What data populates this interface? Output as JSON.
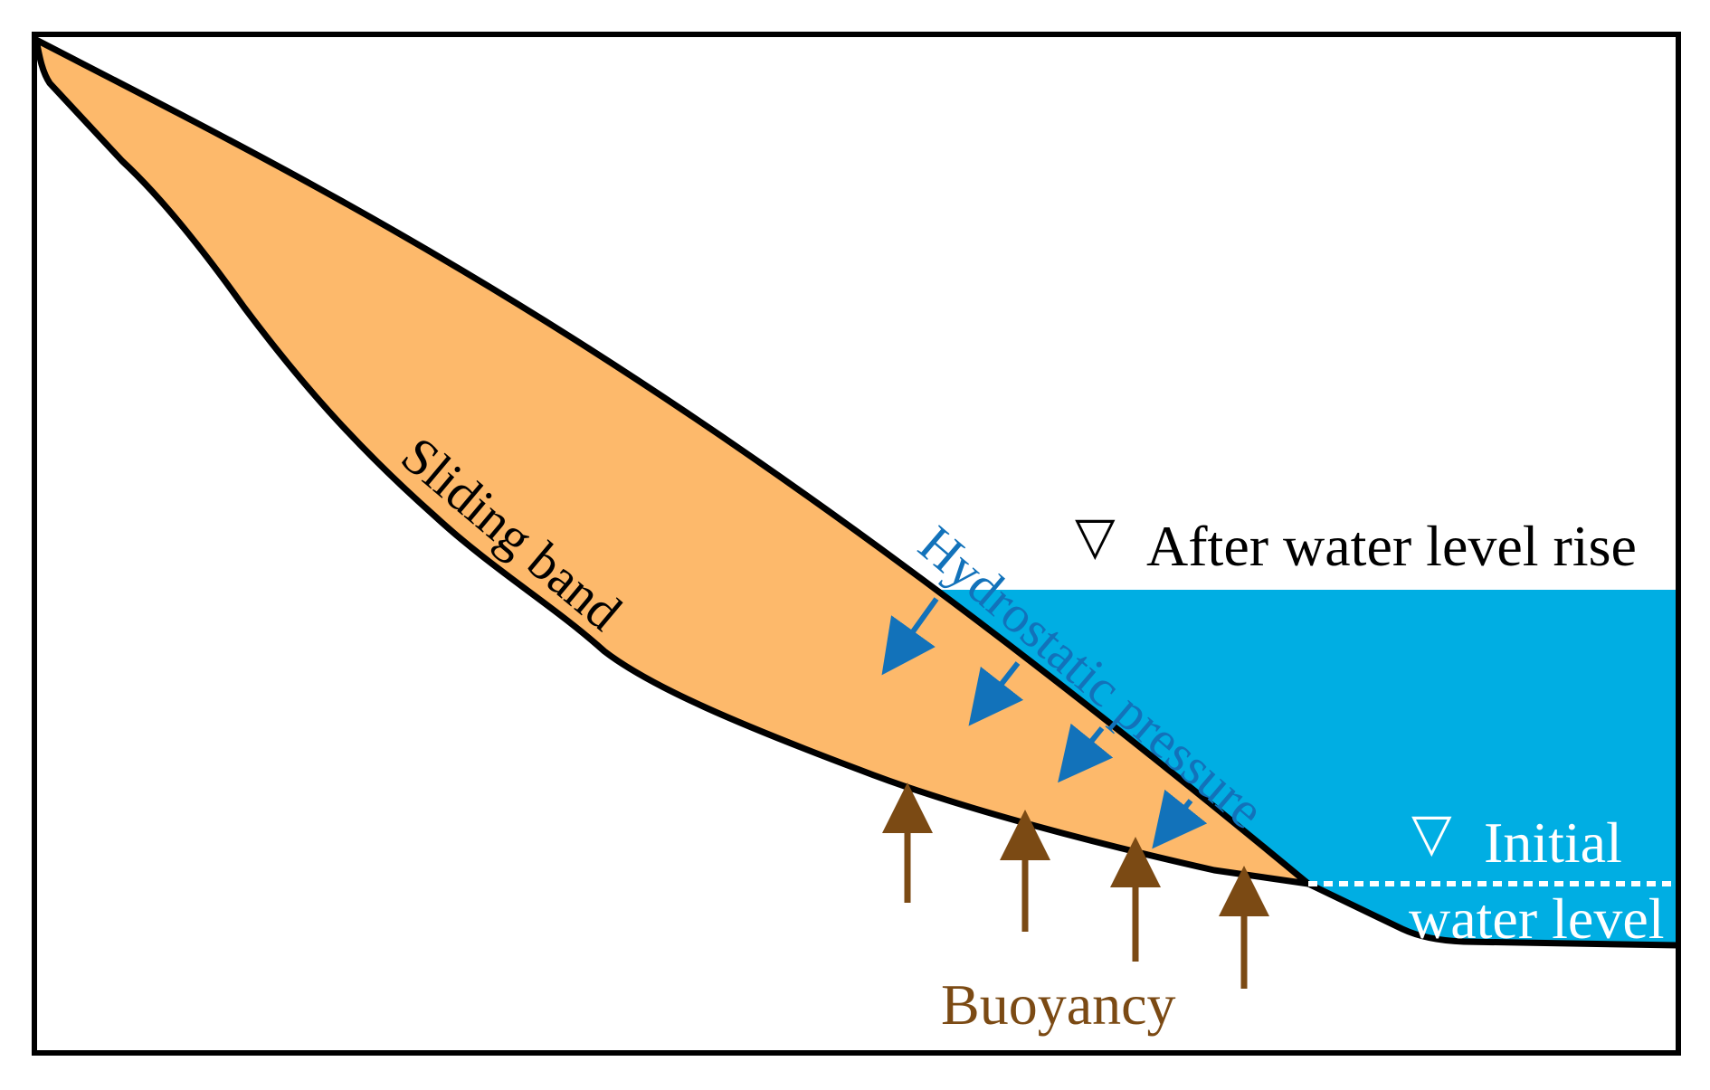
{
  "labels": {
    "sliding_band": "Sliding band",
    "hydrostatic_pressure": "Hydrostatic pressure",
    "after_water_level": "After water level rise",
    "initial_water_level_line1": "Initial",
    "initial_water_level_line2": "water level",
    "buoyancy": "Buoyancy",
    "triangle_symbol": "▽"
  },
  "colors": {
    "landslide_fill": "#FDB96B",
    "water_fill": "#00AEE3",
    "hydrostatic_arrow": "#1272BA",
    "hydrostatic_text": "#1272BA",
    "buoyancy_arrow": "#7B4A14",
    "buoyancy_text": "#7B4A14",
    "outline": "#000000",
    "initial_level_dash": "#ffffff"
  }
}
